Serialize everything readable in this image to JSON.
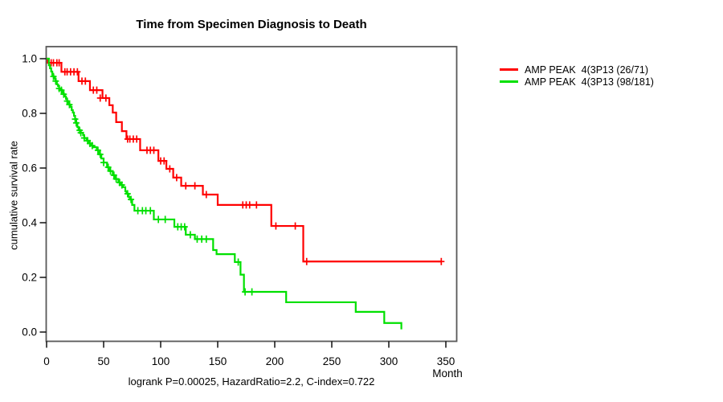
{
  "chart_data": {
    "type": "line",
    "subtype": "kaplan-meier-step",
    "title": "Time from Specimen Diagnosis to Death",
    "xlabel": "Month",
    "ylabel": "cumulative survival rate",
    "footnote": "logrank P=0.00025, HazardRatio=2.2, C-index=0.722",
    "x_ticks": [
      0,
      50,
      100,
      150,
      200,
      250,
      300,
      350
    ],
    "y_ticks": [
      0.0,
      0.2,
      0.4,
      0.6,
      0.8,
      1.0
    ],
    "xlim": [
      0,
      360
    ],
    "ylim": [
      0,
      1.0
    ],
    "grid": false,
    "legend_position": "right-outside",
    "axis_box_color": "#595959",
    "series": [
      {
        "key": "red",
        "name": "AMP PEAK  4(3P13 (26/71)",
        "color": "#ff0000",
        "steps": [
          [
            0,
            1.0
          ],
          [
            1,
            0.985
          ],
          [
            13,
            0.952
          ],
          [
            28,
            0.918
          ],
          [
            38,
            0.885
          ],
          [
            49,
            0.856
          ],
          [
            55,
            0.83
          ],
          [
            58,
            0.803
          ],
          [
            61,
            0.768
          ],
          [
            66,
            0.735
          ],
          [
            70,
            0.706
          ],
          [
            82,
            0.665
          ],
          [
            98,
            0.626
          ],
          [
            105,
            0.597
          ],
          [
            111,
            0.565
          ],
          [
            118,
            0.535
          ],
          [
            137,
            0.503
          ],
          [
            150,
            0.465
          ],
          [
            197,
            0.388
          ],
          [
            225,
            0.258
          ],
          [
            346,
            0.258
          ]
        ],
        "censors": [
          [
            4,
            0.985
          ],
          [
            6,
            0.985
          ],
          [
            9,
            0.985
          ],
          [
            11,
            0.985
          ],
          [
            16,
            0.952
          ],
          [
            18,
            0.952
          ],
          [
            21,
            0.952
          ],
          [
            24,
            0.952
          ],
          [
            27,
            0.952
          ],
          [
            31,
            0.918
          ],
          [
            34,
            0.918
          ],
          [
            41,
            0.885
          ],
          [
            44,
            0.885
          ],
          [
            47,
            0.856
          ],
          [
            52,
            0.856
          ],
          [
            71,
            0.706
          ],
          [
            73,
            0.706
          ],
          [
            76,
            0.706
          ],
          [
            79,
            0.706
          ],
          [
            88,
            0.665
          ],
          [
            91,
            0.665
          ],
          [
            94,
            0.665
          ],
          [
            100,
            0.626
          ],
          [
            103,
            0.626
          ],
          [
            108,
            0.597
          ],
          [
            114,
            0.565
          ],
          [
            122,
            0.535
          ],
          [
            130,
            0.535
          ],
          [
            140,
            0.503
          ],
          [
            172,
            0.465
          ],
          [
            175,
            0.465
          ],
          [
            178,
            0.465
          ],
          [
            184,
            0.465
          ],
          [
            201,
            0.388
          ],
          [
            218,
            0.388
          ],
          [
            228,
            0.258
          ],
          [
            346,
            0.258
          ]
        ]
      },
      {
        "key": "green",
        "name": "AMP PEAK  4(3P13 (98/181)",
        "color": "#00e000",
        "steps": [
          [
            0,
            1.0
          ],
          [
            2,
            0.976
          ],
          [
            3,
            0.965
          ],
          [
            4,
            0.953
          ],
          [
            5,
            0.941
          ],
          [
            6,
            0.935
          ],
          [
            7,
            0.926
          ],
          [
            8,
            0.918
          ],
          [
            9,
            0.906
          ],
          [
            10,
            0.9
          ],
          [
            11,
            0.891
          ],
          [
            12,
            0.885
          ],
          [
            14,
            0.876
          ],
          [
            15,
            0.87
          ],
          [
            16,
            0.862
          ],
          [
            17,
            0.853
          ],
          [
            18,
            0.845
          ],
          [
            19,
            0.838
          ],
          [
            20,
            0.832
          ],
          [
            21,
            0.824
          ],
          [
            22,
            0.812
          ],
          [
            23,
            0.803
          ],
          [
            24,
            0.791
          ],
          [
            25,
            0.779
          ],
          [
            26,
            0.765
          ],
          [
            27,
            0.75
          ],
          [
            28,
            0.738
          ],
          [
            30,
            0.729
          ],
          [
            32,
            0.72
          ],
          [
            33,
            0.71
          ],
          [
            35,
            0.7
          ],
          [
            37,
            0.69
          ],
          [
            39,
            0.682
          ],
          [
            41,
            0.676
          ],
          [
            44,
            0.665
          ],
          [
            46,
            0.65
          ],
          [
            48,
            0.635
          ],
          [
            50,
            0.62
          ],
          [
            53,
            0.603
          ],
          [
            55,
            0.589
          ],
          [
            58,
            0.574
          ],
          [
            60,
            0.56
          ],
          [
            63,
            0.547
          ],
          [
            65,
            0.538
          ],
          [
            67,
            0.53
          ],
          [
            69,
            0.515
          ],
          [
            70,
            0.506
          ],
          [
            72,
            0.494
          ],
          [
            73,
            0.485
          ],
          [
            75,
            0.465
          ],
          [
            77,
            0.444
          ],
          [
            94,
            0.412
          ],
          [
            112,
            0.385
          ],
          [
            122,
            0.356
          ],
          [
            130,
            0.34
          ],
          [
            146,
            0.3
          ],
          [
            149,
            0.285
          ],
          [
            165,
            0.256
          ],
          [
            170,
            0.21
          ],
          [
            173,
            0.147
          ],
          [
            210,
            0.109
          ],
          [
            271,
            0.074
          ],
          [
            296,
            0.033
          ],
          [
            311,
            0.01
          ]
        ],
        "censors": [
          [
            6,
            0.935
          ],
          [
            8,
            0.918
          ],
          [
            11,
            0.891
          ],
          [
            13,
            0.885
          ],
          [
            15,
            0.87
          ],
          [
            18,
            0.845
          ],
          [
            20,
            0.832
          ],
          [
            25,
            0.779
          ],
          [
            26,
            0.765
          ],
          [
            29,
            0.738
          ],
          [
            30,
            0.729
          ],
          [
            33,
            0.71
          ],
          [
            36,
            0.7
          ],
          [
            38,
            0.69
          ],
          [
            40,
            0.682
          ],
          [
            45,
            0.665
          ],
          [
            47,
            0.65
          ],
          [
            50,
            0.62
          ],
          [
            54,
            0.603
          ],
          [
            56,
            0.589
          ],
          [
            59,
            0.574
          ],
          [
            61,
            0.56
          ],
          [
            64,
            0.547
          ],
          [
            66,
            0.538
          ],
          [
            71,
            0.506
          ],
          [
            74,
            0.485
          ],
          [
            80,
            0.444
          ],
          [
            84,
            0.444
          ],
          [
            87,
            0.444
          ],
          [
            91,
            0.444
          ],
          [
            98,
            0.412
          ],
          [
            104,
            0.412
          ],
          [
            115,
            0.385
          ],
          [
            118,
            0.385
          ],
          [
            121,
            0.385
          ],
          [
            126,
            0.356
          ],
          [
            132,
            0.34
          ],
          [
            136,
            0.34
          ],
          [
            140,
            0.34
          ],
          [
            168,
            0.256
          ],
          [
            174,
            0.147
          ],
          [
            180,
            0.147
          ]
        ]
      }
    ]
  }
}
